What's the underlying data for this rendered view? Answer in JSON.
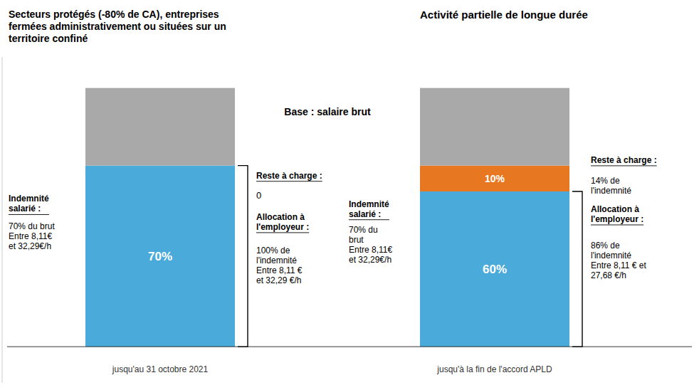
{
  "chart_data": {
    "type": "bar",
    "stacked": true,
    "title": "Secteurs protégés (-80% de CA), entreprises\nfermées administrativement ou situées sur un\nterritoire confiné",
    "subtitle": "Activité partielle de longue durée",
    "categories": [
      "jusqu'au 31 octobre 2021",
      "jusqu'à la fin de l'accord APLD"
    ],
    "series": [
      {
        "color": "#4AABDB",
        "values": [
          70,
          60
        ],
        "data_labels": true,
        "value_labels": [
          "70%",
          "60%"
        ]
      },
      {
        "color": "#E87722",
        "values": [
          null,
          10
        ],
        "data_labels": true,
        "value_labels": [
          null,
          "10%"
        ]
      },
      {
        "color": "#A9A9A9",
        "values": [
          30,
          30
        ]
      }
    ],
    "ylim": [
      -14,
      112
    ],
    "tick_labels": false,
    "annotations": [
      "Base : salaire brut",
      "Indemnité\nsalarié :",
      "70% du brut\nEntre 8,11€\net 32,29€/h",
      "Reste à charge :",
      "0",
      "Allocation à\nl'employeur :",
      "100% de\nl'indemnité\nEntre 8,11 €\net 32,29 €/h",
      "Indemnité\nsalarié :",
      "70% du\nbrut\nEntre 8,11€\net 32,29€/h",
      "Reste à charge :",
      "14% de\nl'indemnité",
      "Allocation à\nl'employeur :",
      "86% de\nl'indemnité\nEntre 8,11 € et\n27,68 €/h"
    ]
  }
}
